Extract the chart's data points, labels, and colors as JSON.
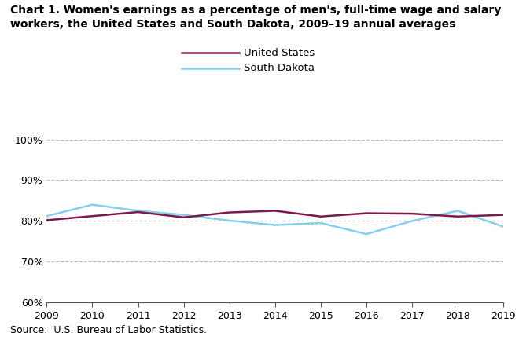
{
  "title_line1": "Chart 1. Women's earnings as a percentage of men's, full-time wage and salary",
  "title_line2": "workers, the United States and South Dakota, 2009–19 annual averages",
  "years": [
    2009,
    2010,
    2011,
    2012,
    2013,
    2014,
    2015,
    2016,
    2017,
    2018,
    2019
  ],
  "us_values": [
    80.2,
    81.2,
    82.2,
    80.9,
    82.1,
    82.5,
    81.1,
    81.9,
    81.8,
    81.1,
    81.5
  ],
  "sd_values": [
    81.2,
    84.0,
    82.5,
    81.5,
    80.1,
    79.0,
    79.5,
    76.8,
    80.0,
    82.5,
    78.6
  ],
  "us_color": "#7b1a4b",
  "sd_color": "#87ceeb",
  "us_label": "United States",
  "sd_label": "South Dakota",
  "ylim": [
    60,
    100
  ],
  "yticks": [
    60,
    70,
    80,
    90,
    100
  ],
  "source": "Source:  U.S. Bureau of Labor Statistics.",
  "line_width": 1.8,
  "background_color": "#ffffff",
  "grid_color": "#b8b8b8",
  "title_fontsize": 10.0,
  "tick_fontsize": 9.0,
  "legend_fontsize": 9.5,
  "source_fontsize": 9.0
}
